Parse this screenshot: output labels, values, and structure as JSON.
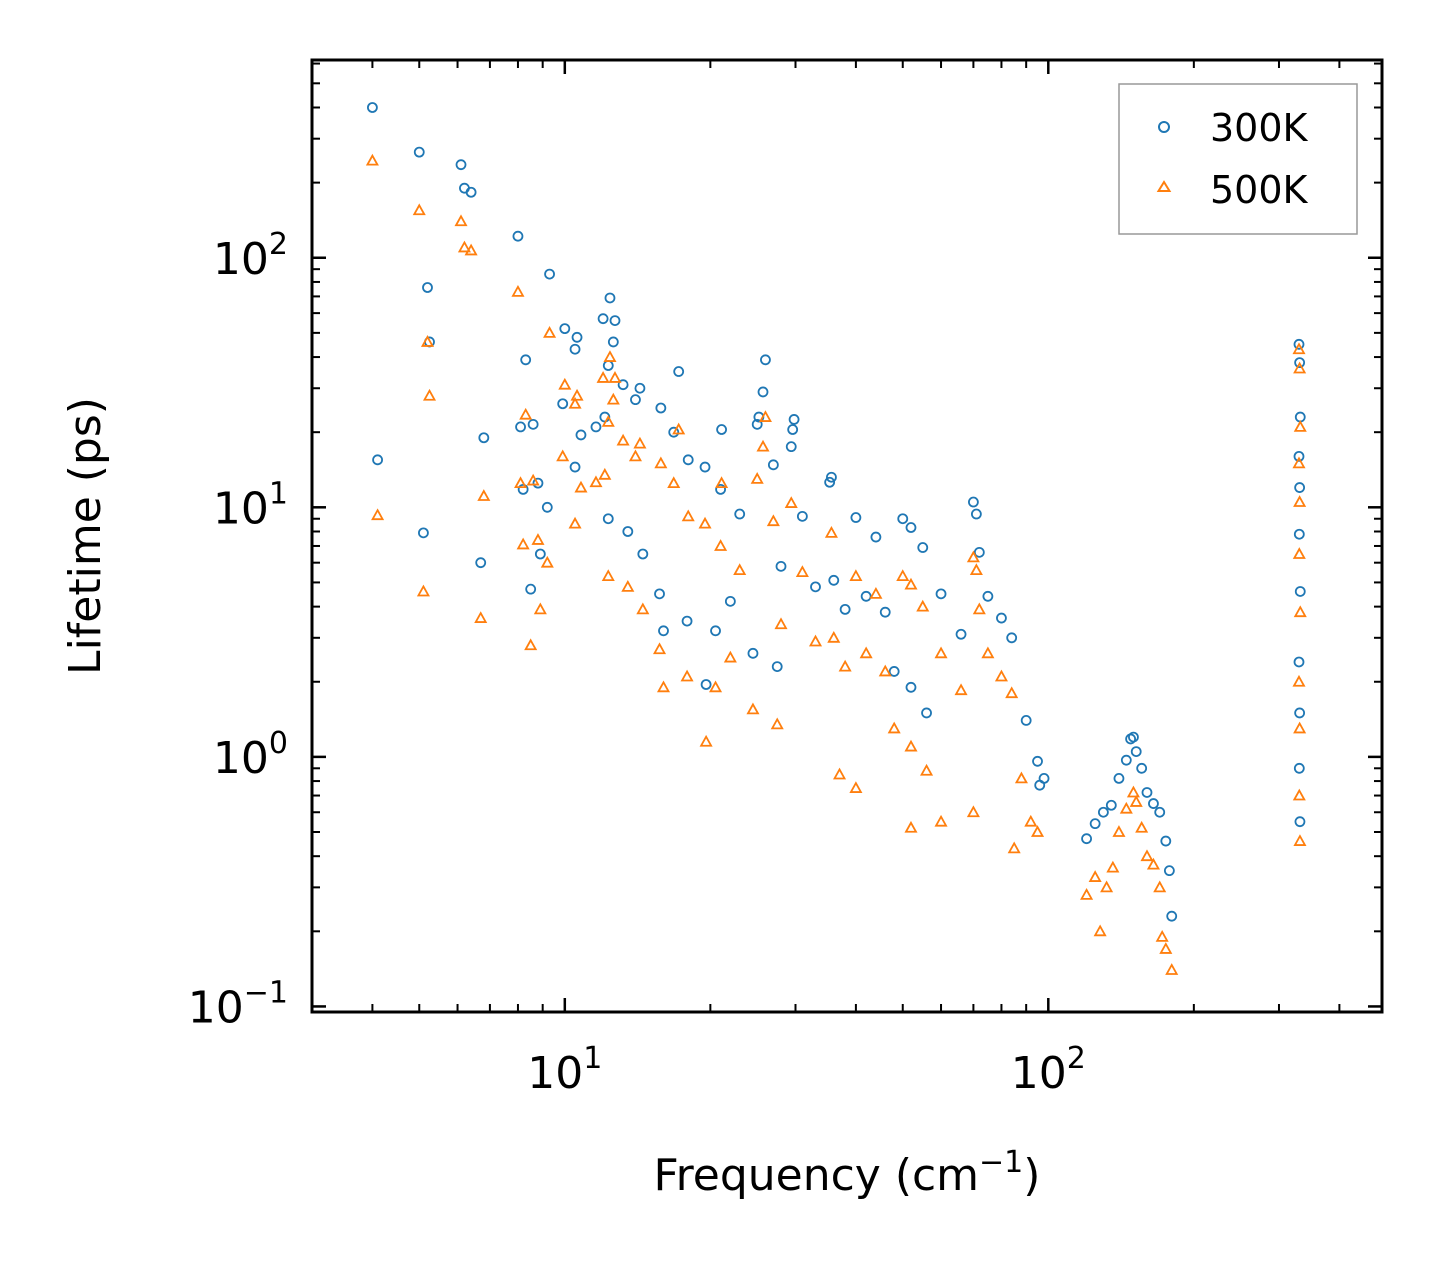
{
  "chart_data": {
    "type": "scatter",
    "xscale": "log",
    "yscale": "log",
    "xlabel": "Frequency (cm",
    "xlabel_sup": "−1",
    "xlabel_end": ")",
    "ylabel": "Lifetime (ps)",
    "xlim": [
      3,
      490
    ],
    "ylim": [
      0.095,
      620
    ],
    "xticks": [
      {
        "value": 10,
        "base": "10",
        "exp": "1"
      },
      {
        "value": 100,
        "base": "10",
        "exp": "2"
      }
    ],
    "yticks": [
      {
        "value": 0.1,
        "base": "10",
        "exp": "−1"
      },
      {
        "value": 1,
        "base": "10",
        "exp": "0"
      },
      {
        "value": 10,
        "base": "10",
        "exp": "1"
      },
      {
        "value": 100,
        "base": "10",
        "exp": "2"
      }
    ],
    "legend": {
      "position": "top-right",
      "entries": [
        "300K",
        "500K"
      ]
    },
    "series": [
      {
        "name": "300K",
        "marker": "circle",
        "color": "#1f77b4",
        "points": [
          [
            4.0,
            400
          ],
          [
            5.0,
            265
          ],
          [
            6.1,
            236
          ],
          [
            6.2,
            190
          ],
          [
            6.4,
            183
          ],
          [
            5.2,
            76
          ],
          [
            5.25,
            46
          ],
          [
            4.1,
            15.5
          ],
          [
            5.1,
            7.9
          ],
          [
            8.0,
            122
          ],
          [
            8.3,
            39
          ],
          [
            8.1,
            21
          ],
          [
            8.6,
            21.5
          ],
          [
            8.2,
            11.8
          ],
          [
            8.8,
            12.5
          ],
          [
            6.8,
            19
          ],
          [
            6.7,
            6.0
          ],
          [
            8.5,
            4.7
          ],
          [
            8.9,
            6.5
          ],
          [
            9.3,
            86
          ],
          [
            10.0,
            52
          ],
          [
            10.6,
            48
          ],
          [
            10.5,
            43
          ],
          [
            9.9,
            26
          ],
          [
            10.8,
            19.5
          ],
          [
            10.5,
            14.5
          ],
          [
            9.2,
            10
          ],
          [
            12.0,
            57
          ],
          [
            12.7,
            56
          ],
          [
            12.4,
            69
          ],
          [
            12.6,
            46
          ],
          [
            12.3,
            37
          ],
          [
            13.2,
            31
          ],
          [
            14.3,
            30
          ],
          [
            14.0,
            27
          ],
          [
            12.1,
            23
          ],
          [
            11.6,
            21
          ],
          [
            15.8,
            25
          ],
          [
            16.8,
            20
          ],
          [
            17.2,
            35
          ],
          [
            12.3,
            9
          ],
          [
            13.5,
            8
          ],
          [
            14.5,
            6.5
          ],
          [
            15.7,
            4.5
          ],
          [
            16.0,
            3.2
          ],
          [
            17.9,
            3.5
          ],
          [
            19.6,
            1.95
          ],
          [
            21.1,
            20.5
          ],
          [
            25.0,
            21.5
          ],
          [
            26.0,
            39
          ],
          [
            25.7,
            29
          ],
          [
            25.2,
            23
          ],
          [
            29.8,
            22.5
          ],
          [
            29.6,
            20.5
          ],
          [
            29.4,
            17.5
          ],
          [
            27.0,
            14.8
          ],
          [
            35.6,
            13.2
          ],
          [
            35.3,
            12.6
          ],
          [
            31.0,
            9.2
          ],
          [
            40.0,
            9.1
          ],
          [
            44.0,
            7.6
          ],
          [
            50.0,
            9.0
          ],
          [
            52.0,
            8.3
          ],
          [
            55.0,
            6.9
          ],
          [
            60.0,
            4.5
          ],
          [
            66.0,
            3.1
          ],
          [
            70.0,
            10.5
          ],
          [
            71.0,
            9.4
          ],
          [
            72.0,
            6.6
          ],
          [
            75.0,
            4.4
          ],
          [
            80.0,
            3.6
          ],
          [
            84.0,
            3.0
          ],
          [
            90.0,
            1.4
          ],
          [
            95.0,
            0.96
          ],
          [
            98.0,
            0.82
          ],
          [
            96.0,
            0.77
          ],
          [
            48.0,
            2.2
          ],
          [
            52.0,
            1.9
          ],
          [
            56.0,
            1.5
          ],
          [
            36.0,
            5.1
          ],
          [
            38.0,
            3.9
          ],
          [
            42.0,
            4.4
          ],
          [
            46.0,
            3.8
          ],
          [
            33.0,
            4.8
          ],
          [
            28.0,
            5.8
          ],
          [
            23.0,
            9.4
          ],
          [
            21.0,
            11.8
          ],
          [
            19.5,
            14.5
          ],
          [
            18.0,
            15.5
          ],
          [
            22.0,
            4.2
          ],
          [
            20.5,
            3.2
          ],
          [
            24.5,
            2.6
          ],
          [
            27.5,
            2.3
          ],
          [
            120.0,
            0.47
          ],
          [
            125.0,
            0.54
          ],
          [
            130.0,
            0.6
          ],
          [
            135.0,
            0.64
          ],
          [
            140.0,
            0.82
          ],
          [
            145.0,
            0.97
          ],
          [
            148.0,
            1.18
          ],
          [
            150.0,
            1.2
          ],
          [
            152.0,
            1.05
          ],
          [
            156.0,
            0.9
          ],
          [
            160.0,
            0.72
          ],
          [
            165.0,
            0.65
          ],
          [
            170.0,
            0.6
          ],
          [
            175.0,
            0.46
          ],
          [
            178.0,
            0.35
          ],
          [
            180.0,
            0.23
          ],
          [
            330.0,
            45
          ],
          [
            331.0,
            38
          ],
          [
            332.0,
            23
          ],
          [
            330.0,
            16
          ],
          [
            331.0,
            12
          ],
          [
            330.5,
            7.8
          ],
          [
            332.0,
            4.6
          ],
          [
            330.0,
            2.4
          ],
          [
            331.0,
            1.5
          ],
          [
            330.5,
            0.9
          ],
          [
            331.5,
            0.55
          ]
        ]
      },
      {
        "name": "500K",
        "marker": "triangle",
        "color": "#ff7f0e",
        "points": [
          [
            4.0,
            245
          ],
          [
            5.0,
            155
          ],
          [
            6.1,
            140
          ],
          [
            6.2,
            110
          ],
          [
            6.4,
            107
          ],
          [
            5.2,
            46
          ],
          [
            5.25,
            28
          ],
          [
            4.1,
            9.3
          ],
          [
            5.1,
            4.6
          ],
          [
            8.0,
            73
          ],
          [
            8.3,
            23.5
          ],
          [
            8.1,
            12.5
          ],
          [
            8.6,
            12.8
          ],
          [
            8.2,
            7.1
          ],
          [
            8.8,
            7.4
          ],
          [
            6.8,
            11.1
          ],
          [
            6.7,
            3.6
          ],
          [
            8.5,
            2.8
          ],
          [
            8.9,
            3.9
          ],
          [
            9.3,
            50
          ],
          [
            10.0,
            31
          ],
          [
            10.6,
            28
          ],
          [
            10.5,
            26
          ],
          [
            9.9,
            16
          ],
          [
            10.8,
            12
          ],
          [
            10.5,
            8.6
          ],
          [
            9.2,
            6.0
          ],
          [
            12.0,
            33
          ],
          [
            12.7,
            33
          ],
          [
            12.4,
            40
          ],
          [
            12.6,
            27
          ],
          [
            12.3,
            22
          ],
          [
            13.2,
            18.5
          ],
          [
            14.3,
            18
          ],
          [
            14.0,
            16
          ],
          [
            12.1,
            13.5
          ],
          [
            11.6,
            12.6
          ],
          [
            15.8,
            15
          ],
          [
            16.8,
            12.5
          ],
          [
            17.2,
            20.5
          ],
          [
            12.3,
            5.3
          ],
          [
            13.5,
            4.8
          ],
          [
            14.5,
            3.9
          ],
          [
            15.7,
            2.7
          ],
          [
            16.0,
            1.9
          ],
          [
            17.9,
            2.1
          ],
          [
            19.6,
            1.15
          ],
          [
            21.1,
            12.5
          ],
          [
            25.0,
            13
          ],
          [
            26.0,
            23
          ],
          [
            25.7,
            17.5
          ],
          [
            27.0,
            8.8
          ],
          [
            29.4,
            10.4
          ],
          [
            31.0,
            5.5
          ],
          [
            35.6,
            7.9
          ],
          [
            40.0,
            5.3
          ],
          [
            44.0,
            4.5
          ],
          [
            50.0,
            5.3
          ],
          [
            52.0,
            4.9
          ],
          [
            55.0,
            4.0
          ],
          [
            60.0,
            2.6
          ],
          [
            66.0,
            1.85
          ],
          [
            70.0,
            6.3
          ],
          [
            71.0,
            5.6
          ],
          [
            72.0,
            3.9
          ],
          [
            75.0,
            2.6
          ],
          [
            80.0,
            2.1
          ],
          [
            84.0,
            1.8
          ],
          [
            88.0,
            0.82
          ],
          [
            92.0,
            0.55
          ],
          [
            95.0,
            0.5
          ],
          [
            48.0,
            1.3
          ],
          [
            52.0,
            1.1
          ],
          [
            56.0,
            0.88
          ],
          [
            36.0,
            3.0
          ],
          [
            38.0,
            2.3
          ],
          [
            42.0,
            2.6
          ],
          [
            46.0,
            2.2
          ],
          [
            33.0,
            2.9
          ],
          [
            28.0,
            3.4
          ],
          [
            23.0,
            5.6
          ],
          [
            21.0,
            7.0
          ],
          [
            19.5,
            8.6
          ],
          [
            18.0,
            9.2
          ],
          [
            22.0,
            2.5
          ],
          [
            20.5,
            1.9
          ],
          [
            24.5,
            1.55
          ],
          [
            27.5,
            1.35
          ],
          [
            37.0,
            0.85
          ],
          [
            40.0,
            0.75
          ],
          [
            52.0,
            0.52
          ],
          [
            60.0,
            0.55
          ],
          [
            70.0,
            0.6
          ],
          [
            85.0,
            0.43
          ],
          [
            120.0,
            0.28
          ],
          [
            125.0,
            0.33
          ],
          [
            128.0,
            0.2
          ],
          [
            132.0,
            0.3
          ],
          [
            136.0,
            0.36
          ],
          [
            140.0,
            0.5
          ],
          [
            145.0,
            0.62
          ],
          [
            150.0,
            0.72
          ],
          [
            152.0,
            0.66
          ],
          [
            156.0,
            0.52
          ],
          [
            160.0,
            0.4
          ],
          [
            165.0,
            0.37
          ],
          [
            170.0,
            0.3
          ],
          [
            172.0,
            0.19
          ],
          [
            175.0,
            0.17
          ],
          [
            180.0,
            0.14
          ],
          [
            330.0,
            43
          ],
          [
            331.0,
            36
          ],
          [
            332.0,
            21
          ],
          [
            330.0,
            15
          ],
          [
            331.0,
            10.5
          ],
          [
            330.5,
            6.5
          ],
          [
            332.0,
            3.8
          ],
          [
            330.0,
            2.0
          ],
          [
            331.0,
            1.3
          ],
          [
            330.5,
            0.7
          ],
          [
            331.5,
            0.46
          ]
        ]
      }
    ]
  }
}
